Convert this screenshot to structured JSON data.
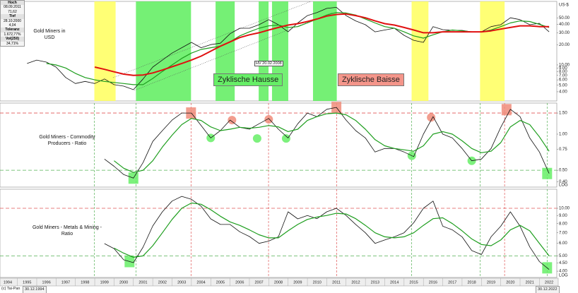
{
  "chart_data": [
    {
      "type": "line",
      "title": "Gold Miners in USD",
      "y_unit": "US-$",
      "log": true,
      "xlim": [
        1994.1,
        2022.9
      ],
      "ylim": [
        2.92,
        87.6
      ],
      "yticks": [
        {
          "value": 50,
          "label": "50.00"
        },
        {
          "value": 40,
          "label": "40.00"
        },
        {
          "value": 30,
          "label": "30.00"
        },
        {
          "value": 20,
          "label": "20.00"
        },
        {
          "value": 10,
          "label": "10.00"
        },
        {
          "value": 9,
          "label": "9.00"
        },
        {
          "value": 8,
          "label": "8.00"
        },
        {
          "value": 7,
          "label": "7.00"
        },
        {
          "value": 6,
          "label": "6.00"
        },
        {
          "value": 5,
          "label": "5.00"
        },
        {
          "value": 4,
          "label": "4.00"
        }
      ],
      "info": [
        [
          "Hoch",
          "08.09.2011",
          "71,62"
        ],
        [
          "Tief",
          "28.10.2000",
          "4,04"
        ],
        [
          "Toleranz",
          "1.672,77%"
        ],
        [
          "Vol(250)",
          "34,71%"
        ]
      ],
      "zones": [
        {
          "start": 1998.98,
          "end": 2000.08,
          "color": "#ffff66"
        },
        {
          "start": 2001.13,
          "end": 2003.98,
          "color": "#66ee66"
        },
        {
          "start": 2005.25,
          "end": 2006.24,
          "color": "#66ee66"
        },
        {
          "start": 2007.48,
          "end": 2007.99,
          "color": "#66ee66"
        },
        {
          "start": 2008.17,
          "end": 2009.01,
          "color": "#66ee66"
        },
        {
          "start": 2010.29,
          "end": 2011.52,
          "color": "#66ee66"
        },
        {
          "start": 2015.39,
          "end": 2016.26,
          "color": "#ffff66"
        },
        {
          "start": 2018.93,
          "end": 2020.2,
          "color": "#ffff66"
        }
      ],
      "annotations": [
        {
          "text": "Zyklische Hausse",
          "color": "#66ee66"
        },
        {
          "text": "Zyklische Baisse",
          "color": "#f4958a"
        },
        {
          "text": "HV 20.02.2008",
          "color": "#ffffff"
        }
      ],
      "x": [
        1995.5,
        1996,
        1996.5,
        1997,
        1997.5,
        1998,
        1998.5,
        1999,
        1999.5,
        2000,
        2000.5,
        2001,
        2001.5,
        2002,
        2002.5,
        2003,
        2003.5,
        2004,
        2004.5,
        2005,
        2005.5,
        2006,
        2006.5,
        2007,
        2007.5,
        2008,
        2008.5,
        2009,
        2009.5,
        2010,
        2010.5,
        2011,
        2011.5,
        2012,
        2012.5,
        2013,
        2013.5,
        2014,
        2014.5,
        2015,
        2015.5,
        2016,
        2016.5,
        2017,
        2017.5,
        2018,
        2018.5,
        2019,
        2019.5,
        2020,
        2020.5,
        2021,
        2021.5,
        2022,
        2022.5
      ],
      "series": [
        {
          "color": "#111111",
          "width": 0.8,
          "values": [
            10.5,
            11.8,
            11,
            9.3,
            6.5,
            5.3,
            5.7,
            5.3,
            6.2,
            5.1,
            4.85,
            4.3,
            6.2,
            9.3,
            11.8,
            15,
            18,
            21.6,
            18,
            20,
            21,
            29,
            35,
            35,
            39.5,
            47,
            39.5,
            31,
            42,
            54,
            60,
            69,
            71.6,
            54,
            45,
            39.5,
            31,
            33,
            35,
            27.5,
            23.2,
            21.6,
            37,
            33.4,
            32.6,
            32.6,
            31,
            31,
            37,
            39.5,
            50,
            47,
            39.5,
            41.5,
            31
          ]
        },
        {
          "color": "#1e9e1e",
          "width": 1.2,
          "values": [
            null,
            null,
            10.5,
            10,
            9,
            7.5,
            6.5,
            6,
            5.7,
            5.5,
            5.3,
            5.1,
            5.1,
            6.3,
            8,
            10,
            12.5,
            15,
            17,
            18,
            19,
            22,
            27,
            31,
            35,
            38,
            39,
            36,
            37,
            42,
            48,
            55,
            60,
            59,
            55,
            48,
            42,
            37,
            35,
            31,
            27,
            25,
            28,
            31,
            33,
            32,
            31,
            31,
            33,
            37,
            42,
            45,
            44,
            40,
            36
          ]
        },
        {
          "color": "#e01010",
          "width": 2,
          "values": [
            null,
            null,
            null,
            null,
            null,
            null,
            null,
            9.3,
            8.6,
            7.9,
            7.3,
            7,
            7.1,
            7.6,
            8.4,
            9.4,
            10.5,
            11.8,
            13.5,
            16,
            19,
            22,
            25.5,
            28,
            30,
            33,
            36,
            39,
            41,
            44,
            48,
            53,
            56,
            57,
            54,
            50,
            45,
            41,
            39,
            36,
            33,
            30,
            30,
            31,
            31,
            31,
            31,
            31,
            32,
            34,
            36,
            38,
            38,
            37,
            37
          ]
        }
      ]
    },
    {
      "type": "line",
      "title": "Gold Miners - Commodity Producers - Ratio",
      "y_unit": "LOG",
      "log": true,
      "xlim": [
        1994.1,
        2022.9
      ],
      "ylim": [
        0.362,
        1.815
      ],
      "yticks": [
        {
          "value": 1.5,
          "label": "1.50"
        },
        {
          "value": 1,
          "label": "1.00"
        },
        {
          "value": 0.75,
          "label": "0.75"
        },
        {
          "value": 0.5,
          "label": "0.50"
        },
        {
          "value": 0.4,
          "label": "0.40"
        }
      ],
      "hlines": [
        {
          "value": 1.5,
          "color": "#e05555"
        },
        {
          "value": 0.5,
          "color": "#55b055"
        }
      ],
      "vlines": [
        {
          "value": 1998.98,
          "color": "#55b055"
        },
        {
          "value": 2001.13,
          "color": "#55b055"
        },
        {
          "value": 2003.98,
          "color": "#e05555"
        },
        {
          "value": 2007.99,
          "color": "#e05555"
        },
        {
          "value": 2011.52,
          "color": "#e05555"
        },
        {
          "value": 2015.39,
          "color": "#55b055"
        },
        {
          "value": 2018.93,
          "color": "#55b055"
        },
        {
          "value": 2020.2,
          "color": "#e05555"
        },
        {
          "value": 2022.4,
          "color": "#55b055"
        }
      ],
      "markers": [
        {
          "x": 2003.98,
          "y": 1.5,
          "shape": "square",
          "color": "#f08c7a"
        },
        {
          "x": 2011.5,
          "y": 1.67,
          "shape": "square",
          "color": "#f08c7a"
        },
        {
          "x": 2020.3,
          "y": 1.6,
          "shape": "square",
          "color": "#f08c7a"
        },
        {
          "x": 2006.1,
          "y": 1.31,
          "shape": "circle",
          "color": "#f08c7a"
        },
        {
          "x": 2008.0,
          "y": 1.33,
          "shape": "circle",
          "color": "#f08c7a"
        },
        {
          "x": 2016.4,
          "y": 1.38,
          "shape": "circle",
          "color": "#f08c7a"
        },
        {
          "x": 2005.0,
          "y": 0.93,
          "shape": "circle",
          "color": "#66ee66"
        },
        {
          "x": 2007.4,
          "y": 0.92,
          "shape": "circle",
          "color": "#66ee66"
        },
        {
          "x": 2008.9,
          "y": 0.92,
          "shape": "circle",
          "color": "#66ee66"
        },
        {
          "x": 2015.4,
          "y": 0.66,
          "shape": "circle",
          "color": "#66ee66"
        },
        {
          "x": 2018.5,
          "y": 0.6,
          "shape": "circle",
          "color": "#66ee66"
        },
        {
          "x": 2001.0,
          "y": 0.43,
          "shape": "square",
          "color": "#66ee66"
        },
        {
          "x": 2022.4,
          "y": 0.47,
          "shape": "square",
          "color": "#66ee66"
        }
      ],
      "x": [
        1995.5,
        1996,
        1996.5,
        1997,
        1997.5,
        1998,
        1998.5,
        1999,
        1999.5,
        2000,
        2000.5,
        2001,
        2001.5,
        2002,
        2002.5,
        2003,
        2003.5,
        2004,
        2004.5,
        2005,
        2005.5,
        2006,
        2006.5,
        2007,
        2007.5,
        2008,
        2008.5,
        2009,
        2009.5,
        2010,
        2010.5,
        2011,
        2011.5,
        2012,
        2012.5,
        2013,
        2013.5,
        2014,
        2014.5,
        2015,
        2015.5,
        2016,
        2016.5,
        2017,
        2017.5,
        2018,
        2018.5,
        2019,
        2019.5,
        2020,
        2020.5,
        2021,
        2021.5,
        2022,
        2022.5
      ],
      "series": [
        {
          "color": "#111111",
          "width": 0.8,
          "values": [
            null,
            null,
            null,
            null,
            null,
            null,
            null,
            null,
            0.62,
            0.54,
            0.46,
            0.43,
            0.58,
            0.87,
            1.07,
            1.31,
            1.5,
            1.5,
            1.18,
            0.93,
            1.07,
            1.31,
            1.14,
            1.1,
            1.22,
            1.35,
            1.1,
            0.93,
            1.22,
            1.5,
            1.4,
            1.61,
            1.67,
            1.31,
            1.07,
            0.93,
            0.71,
            0.76,
            0.76,
            0.71,
            0.65,
            1,
            1.4,
            1,
            0.93,
            0.76,
            0.6,
            0.62,
            0.76,
            1.14,
            1.61,
            1.4,
            0.93,
            0.71,
            0.47
          ]
        },
        {
          "color": "#1e9e1e",
          "width": 1.2,
          "values": [
            null,
            null,
            null,
            null,
            null,
            null,
            null,
            null,
            null,
            0.6,
            0.52,
            0.48,
            0.5,
            0.6,
            0.78,
            0.98,
            1.2,
            1.35,
            1.3,
            1.15,
            1.07,
            1.1,
            1.14,
            1.12,
            1.14,
            1.18,
            1.15,
            1.05,
            1.1,
            1.3,
            1.4,
            1.48,
            1.5,
            1.45,
            1.3,
            1.1,
            0.9,
            0.8,
            0.76,
            0.74,
            0.72,
            0.8,
            1,
            1.05,
            1,
            0.88,
            0.76,
            0.7,
            0.72,
            0.85,
            1.15,
            1.3,
            1.2,
            0.95,
            0.72
          ]
        }
      ]
    },
    {
      "type": "line",
      "title": "Gold Miners - Metals & Mining - Ratio",
      "y_unit": "LOG",
      "log": true,
      "xlim": [
        1994.1,
        2022.9
      ],
      "ylim": [
        3.65,
        13.2
      ],
      "yticks": [
        {
          "value": 10,
          "label": "10.00"
        },
        {
          "value": 9,
          "label": "9.00"
        },
        {
          "value": 8,
          "label": "8.00"
        },
        {
          "value": 7,
          "label": "7.00"
        },
        {
          "value": 6,
          "label": "6.00"
        },
        {
          "value": 5,
          "label": "5.00"
        },
        {
          "value": 4.5,
          "label": "4.50"
        },
        {
          "value": 4,
          "label": "4.00"
        }
      ],
      "xticks": [
        1994,
        1995,
        1996,
        1997,
        1998,
        1999,
        2000,
        2001,
        2002,
        2003,
        2004,
        2005,
        2006,
        2007,
        2008,
        2009,
        2010,
        2011,
        2012,
        2013,
        2014,
        2015,
        2016,
        2017,
        2018,
        2019,
        2020,
        2021,
        2022
      ],
      "hlines": [
        {
          "value": 10,
          "color": "#e05555"
        },
        {
          "value": 5,
          "color": "#55b055"
        }
      ],
      "vlines": [
        {
          "value": 1998.98,
          "color": "#55b055"
        },
        {
          "value": 2001.13,
          "color": "#55b055"
        },
        {
          "value": 2003.98,
          "color": "#e05555"
        },
        {
          "value": 2007.99,
          "color": "#e05555"
        },
        {
          "value": 2011.52,
          "color": "#e05555"
        },
        {
          "value": 2015.39,
          "color": "#55b055"
        },
        {
          "value": 2018.93,
          "color": "#55b055"
        },
        {
          "value": 2020.2,
          "color": "#e05555"
        },
        {
          "value": 2022.4,
          "color": "#55b055"
        }
      ],
      "markers": [
        {
          "x": 2000.8,
          "y": 4.6,
          "shape": "square",
          "color": "#66ee66"
        },
        {
          "x": 2022.4,
          "y": 4.2,
          "shape": "square",
          "color": "#66ee66"
        }
      ],
      "x": [
        1995.5,
        1996,
        1996.5,
        1997,
        1997.5,
        1998,
        1998.5,
        1999,
        1999.5,
        2000,
        2000.5,
        2001,
        2001.5,
        2002,
        2002.5,
        2003,
        2003.5,
        2004,
        2004.5,
        2005,
        2005.5,
        2006,
        2006.5,
        2007,
        2007.5,
        2008,
        2008.5,
        2009,
        2009.5,
        2010,
        2010.5,
        2011,
        2011.5,
        2012,
        2012.5,
        2013,
        2013.5,
        2014,
        2014.5,
        2015,
        2015.5,
        2016,
        2016.5,
        2017,
        2017.5,
        2018,
        2018.5,
        2019,
        2019.5,
        2020,
        2020.5,
        2021,
        2021.5,
        2022,
        2022.5
      ],
      "series": [
        {
          "color": "#111111",
          "width": 0.8,
          "values": [
            null,
            null,
            null,
            null,
            null,
            null,
            null,
            null,
            5.98,
            5.56,
            4.72,
            4.53,
            5.68,
            7.73,
            9.5,
            11.1,
            11.9,
            11.4,
            10.3,
            8.57,
            7.9,
            7.9,
            7.1,
            6.63,
            6,
            6.2,
            6.6,
            9.5,
            8.57,
            9,
            8.6,
            9.5,
            10,
            9,
            7.9,
            7,
            6,
            6.3,
            6.6,
            7,
            8.1,
            10,
            11.1,
            7.7,
            7.3,
            6.6,
            5.4,
            5.1,
            6.6,
            7.7,
            9.5,
            7.7,
            5.7,
            4.6,
            4.1
          ]
        },
        {
          "color": "#1e9e1e",
          "width": 1.2,
          "values": [
            null,
            null,
            null,
            null,
            null,
            null,
            null,
            null,
            null,
            5.6,
            5.2,
            4.9,
            5,
            5.8,
            7,
            8.5,
            10,
            10.8,
            10.6,
            9.8,
            8.9,
            8.2,
            7.8,
            7.3,
            6.8,
            6.5,
            6.5,
            7.2,
            7.9,
            8.5,
            8.8,
            9,
            9.3,
            9.2,
            8.6,
            7.8,
            7,
            6.6,
            6.5,
            6.6,
            7,
            7.8,
            8.6,
            8.7,
            8,
            7.2,
            6.4,
            5.9,
            5.8,
            6.3,
            7.3,
            7.8,
            7.2,
            6,
            5
          ]
        }
      ]
    }
  ],
  "footer": {
    "source": "(c) Tai-Pan",
    "start": "30.12.1994",
    "end": "30.12.2022"
  }
}
